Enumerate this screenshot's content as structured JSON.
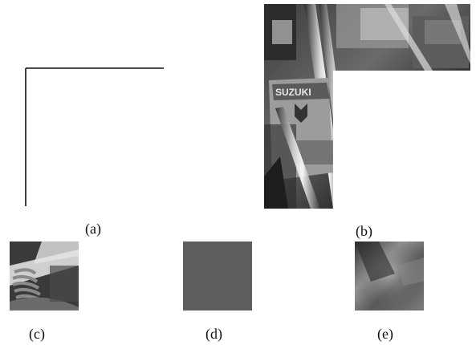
{
  "captions": {
    "a": "(a)",
    "b": "(b)",
    "c": "(c)",
    "d": "(d)",
    "e": "(e)"
  },
  "panel_b": {
    "logo_text": "SUZUKI"
  },
  "colors": {
    "background": "#ffffff",
    "flat_gray": "#5f5f5f",
    "mask_stroke": "#111111"
  }
}
